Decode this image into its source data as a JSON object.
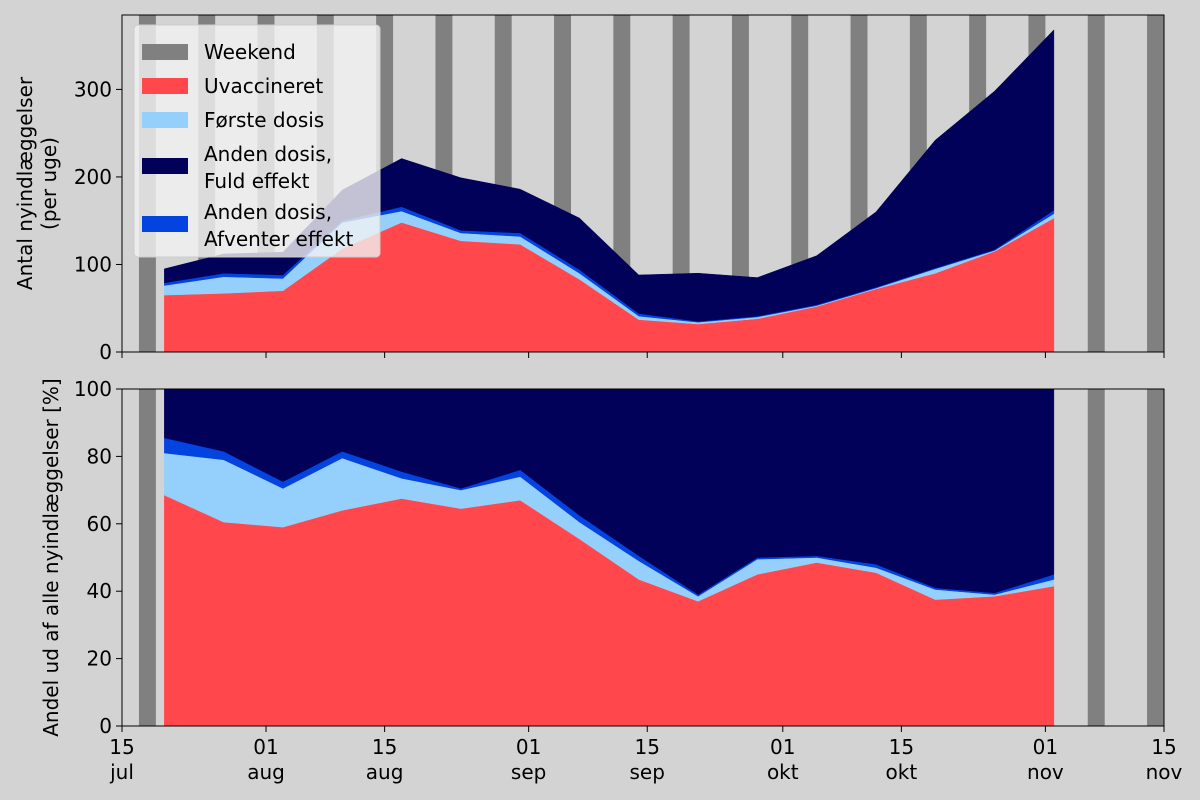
{
  "chart_data": [
    {
      "type": "area",
      "stacked": true,
      "ylabel": [
        "Antal nyindlæggelser",
        "(per uge)"
      ],
      "ylim": [
        0,
        385
      ],
      "yticks": [
        0,
        100,
        200,
        300
      ],
      "x": [
        "2021-07-20",
        "2021-07-27",
        "2021-08-03",
        "2021-08-10",
        "2021-08-17",
        "2021-08-24",
        "2021-08-31",
        "2021-09-07",
        "2021-09-14",
        "2021-09-21",
        "2021-09-28",
        "2021-10-05",
        "2021-10-12",
        "2021-10-19",
        "2021-10-26",
        "2021-11-02"
      ],
      "series": [
        {
          "name": "Uvaccineret",
          "color": "#ff474c",
          "values": [
            65,
            67,
            70,
            118,
            148,
            127,
            123,
            83,
            37,
            32,
            38,
            52,
            72,
            90,
            115,
            153
          ]
        },
        {
          "name": "Første dosis",
          "color": "#95d0fc",
          "values": [
            11,
            19,
            14,
            30,
            13,
            9,
            9,
            7,
            4,
            2,
            2,
            1,
            1,
            5,
            1,
            5
          ]
        },
        {
          "name": "Anden dosis, Afventer effekt",
          "color": "#0343df",
          "values": [
            3,
            4,
            4,
            2,
            5,
            3,
            4,
            4,
            3,
            1,
            1,
            1,
            1,
            1,
            1,
            4
          ]
        },
        {
          "name": "Anden dosis, Fuld effekt",
          "color": "#01015a",
          "values": [
            16,
            22,
            26,
            35,
            55,
            60,
            50,
            59,
            44,
            55,
            44,
            56,
            86,
            146,
            181,
            206
          ]
        }
      ]
    },
    {
      "type": "area",
      "stacked": true,
      "ylabel": "Andel ud af alle nyindlæggelser [%]",
      "ylim": [
        0,
        100
      ],
      "yticks": [
        0,
        20,
        40,
        60,
        80,
        100
      ],
      "x": [
        "2021-07-20",
        "2021-07-27",
        "2021-08-03",
        "2021-08-10",
        "2021-08-17",
        "2021-08-24",
        "2021-08-31",
        "2021-09-07",
        "2021-09-14",
        "2021-09-21",
        "2021-09-28",
        "2021-10-05",
        "2021-10-12",
        "2021-10-19",
        "2021-10-26",
        "2021-11-02"
      ],
      "series": [
        {
          "name": "Uvaccineret",
          "color": "#ff474c",
          "values": [
            68.5,
            60.5,
            59,
            64,
            67.5,
            64.5,
            67,
            55.5,
            43.5,
            37,
            45,
            48.5,
            45.5,
            37.5,
            38.5,
            41.5
          ]
        },
        {
          "name": "Første dosis",
          "color": "#95d0fc",
          "values": [
            12.5,
            18.5,
            11.5,
            15.5,
            6,
            5.5,
            7,
            5,
            5.5,
            1.5,
            4.5,
            1.5,
            1.5,
            3,
            0.5,
            2
          ]
        },
        {
          "name": "Anden dosis, Afventer effekt",
          "color": "#0343df",
          "values": [
            4.5,
            2.5,
            2,
            2,
            2,
            0.5,
            2,
            2,
            1.5,
            0.5,
            0.5,
            0.5,
            1,
            0.5,
            0.5,
            1.5
          ]
        },
        {
          "name": "Anden dosis, Fuld effekt",
          "color": "#01015a",
          "values": [
            14.5,
            18.5,
            27.5,
            18.5,
            24.5,
            29.5,
            24,
            37.5,
            49.5,
            61,
            50,
            49.5,
            52,
            59,
            60.5,
            55
          ]
        }
      ]
    }
  ],
  "xaxis": {
    "start": "2021-07-15",
    "end": "2021-11-15",
    "ticks": [
      {
        "date": "2021-07-15",
        "day": "15",
        "month": "jul"
      },
      {
        "date": "2021-08-01",
        "day": "01",
        "month": "aug"
      },
      {
        "date": "2021-08-15",
        "day": "15",
        "month": "aug"
      },
      {
        "date": "2021-09-01",
        "day": "01",
        "month": "sep"
      },
      {
        "date": "2021-09-15",
        "day": "15",
        "month": "sep"
      },
      {
        "date": "2021-10-01",
        "day": "01",
        "month": "okt"
      },
      {
        "date": "2021-10-15",
        "day": "15",
        "month": "okt"
      },
      {
        "date": "2021-11-01",
        "day": "01",
        "month": "nov"
      },
      {
        "date": "2021-11-15",
        "day": "15",
        "month": "nov"
      }
    ]
  },
  "weekend": {
    "label": "Weekend",
    "color": "#808080"
  },
  "legend": {
    "placement": "top-left",
    "items": [
      {
        "lines": [
          "Weekend"
        ],
        "color": "#808080"
      },
      {
        "lines": [
          "Uvaccineret"
        ],
        "color": "#ff474c"
      },
      {
        "lines": [
          "Første dosis"
        ],
        "color": "#95d0fc"
      },
      {
        "lines": [
          "Anden dosis,",
          "Fuld effekt"
        ],
        "color": "#01015a"
      },
      {
        "lines": [
          "Anden dosis,",
          "Afventer effekt"
        ],
        "color": "#0343df"
      }
    ]
  }
}
